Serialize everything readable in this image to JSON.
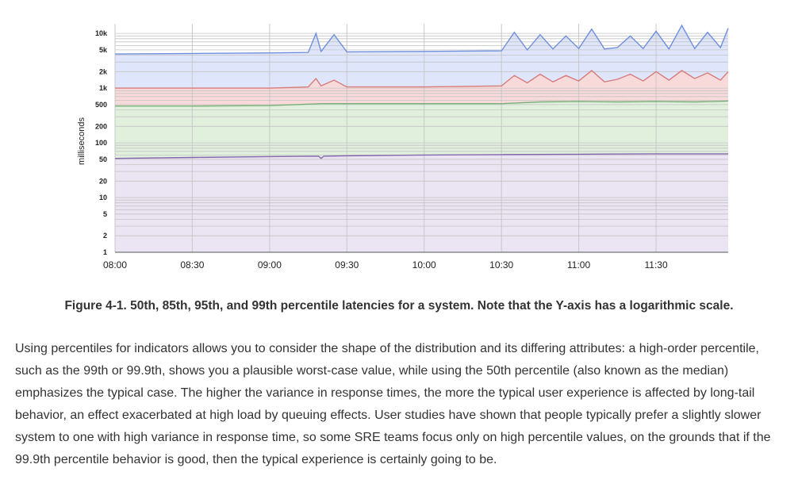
{
  "figure": {
    "caption": "Figure 4-1. 50th, 85th, 95th, and 99th percentile latencies for a system. Note that the Y-axis has a logarithmic scale."
  },
  "paragraph": "Using percentiles for indicators allows you to consider the shape of the distribution and its differing attributes: a high-order percentile, such as the 99th or 99.9th, shows you a plausible worst-case value, while using the 50th percentile (also known as the median) emphasizes the typical case. The higher the variance in response times, the more the typical user experience is affected by long-tail behavior, an effect exacerbated at high load by queuing effects. User studies have shown that people typically prefer a slightly slower system to one with high variance in response time, so some SRE teams focus only on high percentile values, on the grounds that if the 99.9th percentile behavior is good, then the typical experience is certainly going to be.",
  "chart_data": {
    "type": "area",
    "title": "",
    "xlabel": "",
    "ylabel": "milliseconds",
    "yscale": "log",
    "ylim": [
      1,
      15000
    ],
    "xlim": [
      "08:00",
      "11:58"
    ],
    "grid": true,
    "legend": "none",
    "x_ticks": [
      "08:00",
      "08:30",
      "09:00",
      "09:30",
      "10:00",
      "10:30",
      "11:00",
      "11:30"
    ],
    "y_ticks": [
      {
        "value": 1,
        "label": "1"
      },
      {
        "value": 2,
        "label": "2"
      },
      {
        "value": 5,
        "label": "5"
      },
      {
        "value": 10,
        "label": "10"
      },
      {
        "value": 20,
        "label": "20"
      },
      {
        "value": 50,
        "label": "50"
      },
      {
        "value": 100,
        "label": "100"
      },
      {
        "value": 200,
        "label": "200"
      },
      {
        "value": 500,
        "label": "500"
      },
      {
        "value": 1000,
        "label": "1k"
      },
      {
        "value": 2000,
        "label": "2k"
      },
      {
        "value": 5000,
        "label": "5k"
      },
      {
        "value": 10000,
        "label": "10k"
      }
    ],
    "series": [
      {
        "color": "#6f8fdc",
        "fill": "#dfe6fb",
        "x": [
          "08:00",
          "08:30",
          "09:00",
          "09:15",
          "09:18",
          "09:20",
          "09:25",
          "09:30",
          "10:00",
          "10:30",
          "10:35",
          "10:40",
          "10:45",
          "10:50",
          "10:55",
          "11:00",
          "11:05",
          "11:10",
          "11:15",
          "11:20",
          "11:25",
          "11:30",
          "11:35",
          "11:40",
          "11:45",
          "11:50",
          "11:55",
          "11:58"
        ],
        "values": [
          4200,
          4300,
          4400,
          4500,
          10000,
          4700,
          9500,
          4600,
          4700,
          4800,
          10500,
          5000,
          9500,
          5200,
          9000,
          5300,
          12000,
          5200,
          5500,
          9000,
          5300,
          11000,
          5200,
          14000,
          5300,
          10500,
          5500,
          12500
        ]
      },
      {
        "color": "#d77b7b",
        "fill": "#f8dada",
        "x": [
          "08:00",
          "08:30",
          "09:00",
          "09:15",
          "09:18",
          "09:20",
          "09:25",
          "09:30",
          "10:00",
          "10:30",
          "10:35",
          "10:40",
          "10:45",
          "10:50",
          "10:55",
          "11:00",
          "11:05",
          "11:10",
          "11:15",
          "11:20",
          "11:25",
          "11:30",
          "11:35",
          "11:40",
          "11:45",
          "11:50",
          "11:55",
          "11:58"
        ],
        "values": [
          1000,
          1000,
          1000,
          1050,
          1500,
          1100,
          1400,
          1050,
          1050,
          1100,
          1700,
          1250,
          1800,
          1300,
          1700,
          1350,
          2100,
          1300,
          1450,
          1800,
          1350,
          2000,
          1400,
          2100,
          1500,
          1900,
          1400,
          2000
        ]
      },
      {
        "color": "#79b079",
        "fill": "#e0f0dc",
        "x": [
          "08:00",
          "08:30",
          "09:00",
          "09:20",
          "09:30",
          "10:00",
          "10:30",
          "10:45",
          "11:00",
          "11:15",
          "11:30",
          "11:45",
          "11:58"
        ],
        "values": [
          470,
          470,
          480,
          520,
          520,
          520,
          520,
          560,
          570,
          560,
          570,
          560,
          580
        ]
      },
      {
        "color": "#8468ae",
        "fill": "#ebe4f3",
        "x": [
          "08:00",
          "08:30",
          "09:00",
          "09:19",
          "09:20",
          "09:21",
          "09:30",
          "10:00",
          "10:30",
          "11:00",
          "11:30",
          "11:58"
        ],
        "values": [
          52,
          54,
          56,
          57,
          52,
          57,
          58,
          60,
          61,
          62,
          63,
          63
        ]
      }
    ]
  }
}
